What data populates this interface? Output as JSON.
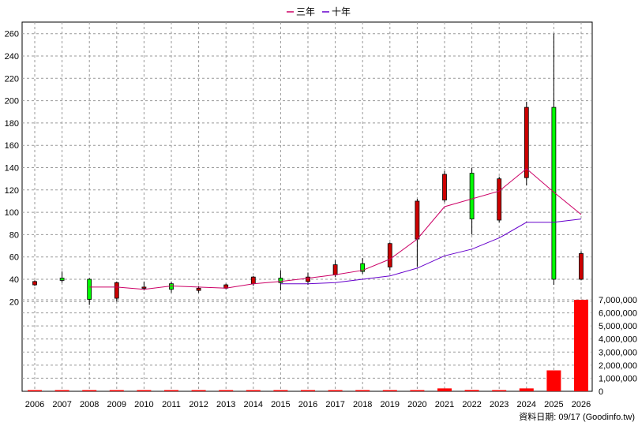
{
  "chart_data": {
    "type": "candlestick",
    "legend": [
      {
        "label": "三年",
        "color": "#cc0066"
      },
      {
        "label": "十年",
        "color": "#6600cc"
      }
    ],
    "footer": "資料日期: 09/17  (Goodinfo.tw)",
    "x": [
      "2006",
      "2007",
      "2008",
      "2009",
      "2010",
      "2011",
      "2012",
      "2013",
      "2014",
      "2015",
      "2016",
      "2017",
      "2018",
      "2019",
      "2020",
      "2021",
      "2022",
      "2023",
      "2024",
      "2025",
      "2026"
    ],
    "price_axis": {
      "ylim": [
        0,
        265
      ],
      "ticks": [
        "20",
        "40",
        "60",
        "80",
        "100",
        "120",
        "140",
        "160",
        "180",
        "200",
        "220",
        "240",
        "260"
      ]
    },
    "volume_axis": {
      "ylim": [
        0,
        7000000
      ],
      "ticks": [
        "0",
        "1,000,000",
        "2,000,000",
        "3,000,000",
        "4,000,000",
        "5,000,000",
        "6,000,000",
        "7,000,000"
      ]
    },
    "candles": [
      {
        "o": 38,
        "h": 39,
        "l": 34,
        "c": 35
      },
      {
        "o": 39,
        "h": 47,
        "l": 37,
        "c": 41
      },
      {
        "o": 22,
        "h": 41,
        "l": 17,
        "c": 40
      },
      {
        "o": 37,
        "h": 38,
        "l": 20,
        "c": 23
      },
      {
        "o": 33,
        "h": 38,
        "l": 30,
        "c": 32
      },
      {
        "o": 31,
        "h": 38,
        "l": 28,
        "c": 36
      },
      {
        "o": 32,
        "h": 34,
        "l": 28,
        "c": 30
      },
      {
        "o": 35,
        "h": 36,
        "l": 31,
        "c": 32
      },
      {
        "o": 42,
        "h": 43,
        "l": 34,
        "c": 36
      },
      {
        "o": 37,
        "h": 48,
        "l": 30,
        "c": 41
      },
      {
        "o": 42,
        "h": 46,
        "l": 35,
        "c": 38
      },
      {
        "o": 53,
        "h": 57,
        "l": 42,
        "c": 44
      },
      {
        "o": 47,
        "h": 59,
        "l": 45,
        "c": 54
      },
      {
        "o": 72,
        "h": 73,
        "l": 48,
        "c": 51
      },
      {
        "o": 110,
        "h": 112,
        "l": 51,
        "c": 76
      },
      {
        "o": 134,
        "h": 137,
        "l": 109,
        "c": 111
      },
      {
        "o": 94,
        "h": 140,
        "l": 80,
        "c": 135
      },
      {
        "o": 130,
        "h": 132,
        "l": 91,
        "c": 93
      },
      {
        "o": 194,
        "h": 199,
        "l": 124,
        "c": 131
      },
      {
        "o": 40,
        "h": 260,
        "l": 35,
        "c": 194
      },
      {
        "o": 63,
        "h": 65,
        "l": 39,
        "c": 40
      }
    ],
    "series": [
      {
        "name": "三年",
        "values": [
          null,
          null,
          33,
          33,
          31,
          34,
          33,
          32,
          36,
          38,
          41,
          44,
          48,
          58,
          76,
          105,
          112,
          119,
          139,
          118,
          98
        ]
      },
      {
        "name": "十年",
        "values": [
          null,
          null,
          null,
          null,
          null,
          null,
          null,
          null,
          null,
          36,
          36,
          37,
          40,
          43,
          50,
          61,
          67,
          77,
          91,
          91,
          94
        ]
      }
    ],
    "volume": [
      70000,
      15000,
      30000,
      10000,
      5000,
      8000,
      5000,
      4000,
      5000,
      4000,
      4000,
      4000,
      5000,
      6000,
      80000,
      220000,
      100000,
      30000,
      220000,
      1600000,
      7000000
    ]
  }
}
